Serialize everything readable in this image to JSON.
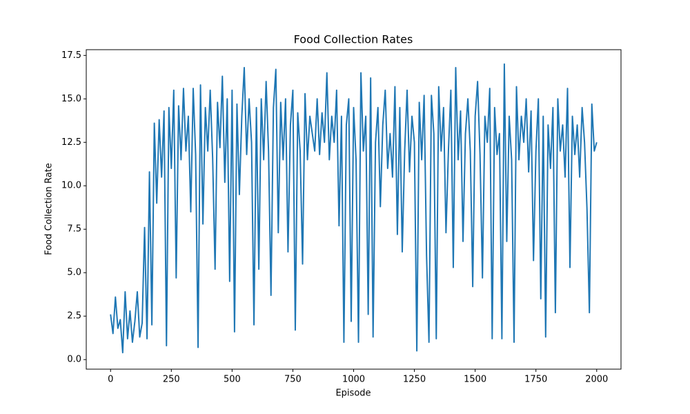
{
  "chart_data": {
    "type": "line",
    "title": "Food Collection Rates",
    "x_label": "Episode",
    "y_label": "Food Collection Rate",
    "color": "#1f77b4",
    "x": [
      0,
      10,
      20,
      30,
      40,
      50,
      60,
      70,
      80,
      90,
      100,
      110,
      120,
      130,
      140,
      150,
      160,
      170,
      180,
      190,
      200,
      210,
      220,
      230,
      240,
      250,
      260,
      270,
      280,
      290,
      300,
      310,
      320,
      330,
      340,
      350,
      360,
      370,
      380,
      390,
      400,
      410,
      420,
      430,
      440,
      450,
      460,
      470,
      480,
      490,
      500,
      510,
      520,
      530,
      540,
      550,
      560,
      570,
      580,
      590,
      600,
      610,
      620,
      630,
      640,
      650,
      660,
      670,
      680,
      690,
      700,
      710,
      720,
      730,
      740,
      750,
      760,
      770,
      780,
      790,
      800,
      810,
      820,
      830,
      840,
      850,
      860,
      870,
      880,
      890,
      900,
      910,
      920,
      930,
      940,
      950,
      960,
      970,
      980,
      990,
      1000,
      1010,
      1020,
      1030,
      1040,
      1050,
      1060,
      1070,
      1080,
      1090,
      1100,
      1110,
      1120,
      1130,
      1140,
      1150,
      1160,
      1170,
      1180,
      1190,
      1200,
      1210,
      1220,
      1230,
      1240,
      1250,
      1260,
      1270,
      1280,
      1290,
      1300,
      1310,
      1320,
      1330,
      1340,
      1350,
      1360,
      1370,
      1380,
      1390,
      1400,
      1410,
      1420,
      1430,
      1440,
      1450,
      1460,
      1470,
      1480,
      1490,
      1500,
      1510,
      1520,
      1530,
      1540,
      1550,
      1560,
      1570,
      1580,
      1590,
      1600,
      1610,
      1620,
      1630,
      1640,
      1650,
      1660,
      1670,
      1680,
      1690,
      1700,
      1710,
      1720,
      1730,
      1740,
      1750,
      1760,
      1770,
      1780,
      1790,
      1800,
      1810,
      1820,
      1830,
      1840,
      1850,
      1860,
      1870,
      1880,
      1890,
      1900,
      1910,
      1920,
      1930,
      1940,
      1950,
      1960,
      1970,
      1980,
      1990,
      2000
    ],
    "values": [
      2.6,
      1.5,
      3.6,
      1.8,
      2.3,
      0.4,
      3.9,
      1.2,
      2.8,
      1.0,
      2.2,
      3.9,
      1.3,
      2.1,
      7.6,
      1.2,
      10.8,
      2.0,
      13.6,
      9.0,
      13.8,
      10.5,
      14.3,
      0.8,
      14.5,
      11.0,
      15.5,
      4.7,
      14.6,
      11.5,
      15.6,
      12.0,
      14.0,
      8.5,
      15.6,
      11.8,
      0.7,
      15.8,
      7.8,
      14.5,
      12.0,
      15.5,
      11.6,
      5.2,
      14.8,
      12.2,
      16.3,
      10.2,
      15.0,
      4.5,
      15.5,
      1.6,
      14.7,
      9.5,
      14.0,
      16.8,
      11.8,
      15.0,
      12.5,
      2.0,
      14.5,
      5.2,
      15.0,
      11.5,
      16.0,
      12.0,
      3.7,
      14.5,
      16.7,
      7.3,
      14.8,
      11.5,
      15.0,
      6.2,
      13.5,
      15.5,
      1.7,
      14.2,
      12.0,
      5.5,
      15.3,
      11.5,
      14.0,
      13.0,
      12.0,
      15.0,
      11.8,
      14.2,
      12.5,
      16.5,
      11.5,
      14.0,
      12.5,
      15.5,
      7.7,
      14.0,
      1.0,
      13.5,
      15.0,
      2.2,
      14.5,
      11.5,
      1.0,
      16.5,
      12.0,
      14.0,
      2.6,
      16.2,
      1.3,
      12.5,
      14.5,
      8.8,
      13.5,
      15.5,
      11.0,
      13.0,
      10.5,
      15.7,
      7.2,
      14.5,
      6.2,
      12.0,
      15.5,
      10.8,
      14.0,
      12.5,
      0.5,
      14.8,
      11.5,
      15.2,
      6.0,
      1.0,
      15.2,
      13.0,
      1.2,
      15.7,
      12.0,
      14.5,
      7.3,
      12.0,
      15.5,
      5.3,
      16.8,
      11.5,
      14.3,
      6.8,
      13.0,
      15.0,
      12.0,
      4.2,
      14.0,
      16.0,
      11.8,
      4.7,
      14.0,
      12.5,
      15.6,
      1.2,
      14.5,
      11.8,
      13.0,
      1.2,
      17.0,
      6.8,
      14.0,
      11.5,
      1.0,
      15.7,
      11.5,
      14.0,
      12.5,
      15.0,
      10.8,
      14.3,
      5.7,
      12.0,
      15.0,
      3.5,
      14.0,
      1.3,
      13.5,
      11.0,
      14.5,
      2.7,
      15.0,
      12.0,
      13.5,
      10.5,
      15.6,
      5.3,
      14.0,
      11.8,
      13.5,
      10.5,
      14.5,
      12.5,
      8.7,
      2.7,
      14.7,
      12.0,
      12.5
    ],
    "xlim": [
      -100,
      2100
    ],
    "xticks": [
      0,
      250,
      500,
      750,
      1000,
      1250,
      1500,
      1750,
      2000
    ],
    "ylim": [
      -0.55,
      17.83
    ],
    "yticks": [
      {
        "value": 0,
        "label": "0.0"
      },
      2.5,
      {
        "value": 5,
        "label": "5.0"
      },
      7.5,
      {
        "value": 10,
        "label": "10.0"
      },
      12.5,
      {
        "value": 15,
        "label": "15.0"
      },
      17.5
    ]
  }
}
